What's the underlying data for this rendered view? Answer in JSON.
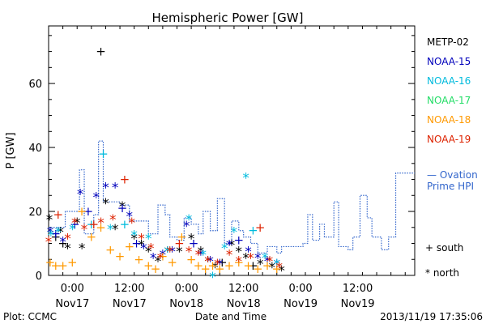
{
  "chart_data": {
    "type": "scatter",
    "title": "Hemispheric Power [GW]",
    "ylabel": "P [GW]",
    "xlabel": "Date and Time",
    "xlim": [
      "2013-11-16T19:00",
      "2013-11-20T00:00"
    ],
    "ylim": [
      0,
      78
    ],
    "yticks": [
      0,
      20,
      40,
      60
    ],
    "xticks": [
      {
        "t": "2013-11-17T00:00",
        "l1": "0:00",
        "l2": "Nov17"
      },
      {
        "t": "2013-11-17T12:00",
        "l1": "12:00",
        "l2": "Nov17"
      },
      {
        "t": "2013-11-18T00:00",
        "l1": "0:00",
        "l2": "Nov18"
      },
      {
        "t": "2013-11-18T12:00",
        "l1": "12:00",
        "l2": "Nov18"
      },
      {
        "t": "2013-11-19T00:00",
        "l1": "0:00",
        "l2": "Nov19"
      },
      {
        "t": "2013-11-19T12:00",
        "l1": "12:00",
        "l2": "Nov19"
      }
    ],
    "grid": false,
    "legend_position": "right",
    "markers": {
      "south": "+",
      "north": "*"
    },
    "marker_legend": [
      {
        "symbol": "+",
        "label": "south"
      },
      {
        "symbol": "*",
        "label": "north"
      }
    ],
    "series": [
      {
        "name": "METP-02",
        "color": "#000000",
        "points": [
          [
            "2013-11-16T19:10",
            18,
            "n"
          ],
          [
            "2013-11-16T20:30",
            12,
            "s"
          ],
          [
            "2013-11-16T21:30",
            14,
            "n"
          ],
          [
            "2013-11-16T23:00",
            9,
            "n"
          ],
          [
            "2013-11-16T22:00",
            10,
            "s"
          ],
          [
            "2013-11-17T01:00",
            17,
            "n"
          ],
          [
            "2013-11-17T02:00",
            9,
            "n"
          ],
          [
            "2013-11-17T06:00",
            70,
            "s"
          ],
          [
            "2013-11-17T07:00",
            23,
            "n"
          ],
          [
            "2013-11-17T09:00",
            15,
            "n"
          ],
          [
            "2013-11-17T10:30",
            22,
            "n"
          ],
          [
            "2013-11-17T13:00",
            12,
            "n"
          ],
          [
            "2013-11-17T14:30",
            10,
            "n"
          ],
          [
            "2013-11-17T16:00",
            8,
            "n"
          ],
          [
            "2013-11-17T18:00",
            5,
            "n"
          ],
          [
            "2013-11-17T20:00",
            8,
            "n"
          ],
          [
            "2013-11-17T22:30",
            8,
            "n"
          ],
          [
            "2013-11-18T01:00",
            12,
            "n"
          ],
          [
            "2013-11-18T03:00",
            8,
            "n"
          ],
          [
            "2013-11-18T04:30",
            5,
            "n"
          ],
          [
            "2013-11-18T06:00",
            3,
            "n"
          ],
          [
            "2013-11-18T07:30",
            4,
            "s"
          ],
          [
            "2013-11-18T09:30",
            10,
            "n"
          ],
          [
            "2013-11-18T11:00",
            8,
            "n"
          ],
          [
            "2013-11-18T12:30",
            6,
            "n"
          ],
          [
            "2013-11-18T14:00",
            3,
            "s"
          ],
          [
            "2013-11-18T15:30",
            4,
            "n"
          ],
          [
            "2013-11-18T18:00",
            3,
            "n"
          ],
          [
            "2013-11-18T20:00",
            2,
            "n"
          ]
        ]
      },
      {
        "name": "NOAA-15",
        "color": "#0000bb",
        "points": [
          [
            "2013-11-16T19:20",
            14,
            "n"
          ],
          [
            "2013-11-16T20:30",
            13,
            "s"
          ],
          [
            "2013-11-16T22:00",
            11,
            "n"
          ],
          [
            "2013-11-17T00:30",
            16,
            "s"
          ],
          [
            "2013-11-17T01:40",
            26,
            "n"
          ],
          [
            "2013-11-17T03:20",
            20,
            "s"
          ],
          [
            "2013-11-17T05:00",
            25,
            "n"
          ],
          [
            "2013-11-17T07:00",
            28,
            "n"
          ],
          [
            "2013-11-17T09:00",
            28,
            "n"
          ],
          [
            "2013-11-17T10:30",
            21,
            "s"
          ],
          [
            "2013-11-17T12:00",
            19,
            "n"
          ],
          [
            "2013-11-17T13:30",
            10,
            "s"
          ],
          [
            "2013-11-17T15:00",
            9,
            "n"
          ],
          [
            "2013-11-17T17:00",
            6,
            "n"
          ],
          [
            "2013-11-17T19:00",
            7,
            "n"
          ],
          [
            "2013-11-17T21:00",
            8,
            "n"
          ],
          [
            "2013-11-18T00:00",
            16,
            "n"
          ],
          [
            "2013-11-18T01:30",
            10,
            "s"
          ],
          [
            "2013-11-18T03:00",
            7,
            "n"
          ],
          [
            "2013-11-18T05:00",
            5,
            "n"
          ],
          [
            "2013-11-18T07:00",
            4,
            "n"
          ],
          [
            "2013-11-18T09:00",
            10,
            "n"
          ],
          [
            "2013-11-18T11:00",
            11,
            "s"
          ],
          [
            "2013-11-18T13:00",
            8,
            "n"
          ],
          [
            "2013-11-18T15:00",
            6,
            "n"
          ],
          [
            "2013-11-18T17:00",
            5,
            "n"
          ],
          [
            "2013-11-18T19:00",
            4,
            "n"
          ]
        ]
      },
      {
        "name": "NOAA-16",
        "color": "#00bbdd",
        "points": [
          [
            "2013-11-16T19:30",
            13,
            "n"
          ],
          [
            "2013-11-16T21:00",
            14,
            "n"
          ],
          [
            "2013-11-17T00:00",
            15,
            "n"
          ],
          [
            "2013-11-17T04:00",
            16,
            "s"
          ],
          [
            "2013-11-17T06:30",
            38,
            "s"
          ],
          [
            "2013-11-17T08:00",
            15,
            "n"
          ],
          [
            "2013-11-17T11:00",
            16,
            "s"
          ],
          [
            "2013-11-17T13:00",
            13,
            "n"
          ],
          [
            "2013-11-17T16:00",
            12,
            "n"
          ],
          [
            "2013-11-17T20:00",
            8,
            "n"
          ],
          [
            "2013-11-18T00:30",
            18,
            "n"
          ],
          [
            "2013-11-18T03:30",
            7,
            "n"
          ],
          [
            "2013-11-18T05:30",
            0,
            "n"
          ],
          [
            "2013-11-18T08:00",
            9,
            "n"
          ],
          [
            "2013-11-18T10:00",
            14,
            "n"
          ],
          [
            "2013-11-18T12:30",
            31,
            "n"
          ],
          [
            "2013-11-18T14:00",
            14,
            "s"
          ],
          [
            "2013-11-18T16:30",
            6,
            "n"
          ],
          [
            "2013-11-18T19:00",
            4,
            "n"
          ]
        ]
      },
      {
        "name": "NOAA-17",
        "color": "#22dd66",
        "points": []
      },
      {
        "name": "NOAA-18",
        "color": "#ff9900",
        "points": [
          [
            "2013-11-16T19:20",
            4,
            "s"
          ],
          [
            "2013-11-16T20:30",
            3,
            "s"
          ],
          [
            "2013-11-16T22:00",
            3,
            "s"
          ],
          [
            "2013-11-17T00:00",
            4,
            "s"
          ],
          [
            "2013-11-17T02:00",
            20,
            "s"
          ],
          [
            "2013-11-17T04:00",
            12,
            "s"
          ],
          [
            "2013-11-17T06:00",
            15,
            "s"
          ],
          [
            "2013-11-17T08:00",
            8,
            "s"
          ],
          [
            "2013-11-17T10:00",
            6,
            "s"
          ],
          [
            "2013-11-17T12:00",
            9,
            "s"
          ],
          [
            "2013-11-17T14:00",
            5,
            "s"
          ],
          [
            "2013-11-17T16:00",
            3,
            "s"
          ],
          [
            "2013-11-17T17:30",
            2,
            "s"
          ],
          [
            "2013-11-17T19:00",
            6,
            "s"
          ],
          [
            "2013-11-17T21:00",
            4,
            "s"
          ],
          [
            "2013-11-17T23:00",
            12,
            "s"
          ],
          [
            "2013-11-18T01:00",
            5,
            "s"
          ],
          [
            "2013-11-18T02:30",
            3,
            "s"
          ],
          [
            "2013-11-18T04:00",
            2,
            "s"
          ],
          [
            "2013-11-18T05:30",
            3,
            "s"
          ],
          [
            "2013-11-18T07:00",
            2,
            "s"
          ],
          [
            "2013-11-18T09:00",
            3,
            "s"
          ],
          [
            "2013-11-18T11:00",
            4,
            "s"
          ],
          [
            "2013-11-18T13:00",
            3,
            "s"
          ],
          [
            "2013-11-18T15:00",
            2,
            "s"
          ],
          [
            "2013-11-18T17:00",
            3,
            "s"
          ],
          [
            "2013-11-18T19:00",
            2,
            "s"
          ]
        ]
      },
      {
        "name": "NOAA-19",
        "color": "#dd2200",
        "points": [
          [
            "2013-11-16T19:00",
            11,
            "n"
          ],
          [
            "2013-11-16T21:00",
            19,
            "s"
          ],
          [
            "2013-11-16T23:00",
            12,
            "n"
          ],
          [
            "2013-11-17T00:30",
            17,
            "n"
          ],
          [
            "2013-11-17T02:30",
            15,
            "n"
          ],
          [
            "2013-11-17T04:30",
            16,
            "s"
          ],
          [
            "2013-11-17T06:00",
            17,
            "n"
          ],
          [
            "2013-11-17T08:30",
            18,
            "n"
          ],
          [
            "2013-11-17T11:00",
            30,
            "s"
          ],
          [
            "2013-11-17T12:30",
            17,
            "n"
          ],
          [
            "2013-11-17T14:30",
            12,
            "n"
          ],
          [
            "2013-11-17T16:30",
            9,
            "n"
          ],
          [
            "2013-11-17T18:30",
            6,
            "n"
          ],
          [
            "2013-11-17T20:30",
            8,
            "n"
          ],
          [
            "2013-11-17T22:30",
            10,
            "s"
          ],
          [
            "2013-11-18T00:30",
            8,
            "n"
          ],
          [
            "2013-11-18T02:30",
            7,
            "n"
          ],
          [
            "2013-11-18T04:30",
            5,
            "n"
          ],
          [
            "2013-11-18T06:30",
            4,
            "n"
          ],
          [
            "2013-11-18T09:00",
            7,
            "n"
          ],
          [
            "2013-11-18T11:00",
            5,
            "n"
          ],
          [
            "2013-11-18T13:30",
            6,
            "n"
          ],
          [
            "2013-11-18T15:30",
            15,
            "s"
          ],
          [
            "2013-11-18T17:30",
            5,
            "n"
          ],
          [
            "2013-11-18T19:30",
            3,
            "n"
          ]
        ]
      }
    ],
    "ovation": {
      "name": "Ovation Prime HPI",
      "label_line1": "— Ovation",
      "label_line2": "Prime HPI",
      "color": "#3366cc",
      "points": [
        [
          "2013-11-16T19:00",
          15
        ],
        [
          "2013-11-16T22:30",
          20
        ],
        [
          "2013-11-17T00:00",
          20
        ],
        [
          "2013-11-17T01:30",
          33
        ],
        [
          "2013-11-17T02:30",
          13
        ],
        [
          "2013-11-17T04:30",
          19
        ],
        [
          "2013-11-17T05:30",
          42
        ],
        [
          "2013-11-17T06:30",
          23
        ],
        [
          "2013-11-17T08:30",
          23
        ],
        [
          "2013-11-17T10:00",
          22
        ],
        [
          "2013-11-17T12:00",
          17
        ],
        [
          "2013-11-17T14:30",
          17
        ],
        [
          "2013-11-17T16:00",
          13
        ],
        [
          "2013-11-17T18:00",
          22
        ],
        [
          "2013-11-17T19:30",
          19
        ],
        [
          "2013-11-17T20:30",
          12
        ],
        [
          "2013-11-17T22:00",
          11
        ],
        [
          "2013-11-17T23:30",
          18
        ],
        [
          "2013-11-18T01:00",
          16
        ],
        [
          "2013-11-18T02:30",
          13
        ],
        [
          "2013-11-18T03:30",
          20
        ],
        [
          "2013-11-18T05:00",
          14
        ],
        [
          "2013-11-18T06:30",
          24
        ],
        [
          "2013-11-18T08:00",
          10
        ],
        [
          "2013-11-18T09:30",
          17
        ],
        [
          "2013-11-18T11:00",
          14
        ],
        [
          "2013-11-18T12:00",
          12
        ],
        [
          "2013-11-18T13:30",
          10
        ],
        [
          "2013-11-18T15:00",
          7
        ],
        [
          "2013-11-18T17:00",
          9
        ],
        [
          "2013-11-18T19:00",
          7
        ],
        [
          "2013-11-18T20:00",
          9
        ],
        [
          "2013-11-18T22:00",
          9
        ],
        [
          "2013-11-19T00:30",
          10
        ],
        [
          "2013-11-19T01:30",
          19
        ],
        [
          "2013-11-19T02:30",
          11
        ],
        [
          "2013-11-19T04:00",
          16
        ],
        [
          "2013-11-19T05:00",
          12
        ],
        [
          "2013-11-19T07:00",
          23
        ],
        [
          "2013-11-19T08:00",
          9
        ],
        [
          "2013-11-19T10:00",
          8
        ],
        [
          "2013-11-19T11:00",
          12
        ],
        [
          "2013-11-19T12:30",
          25
        ],
        [
          "2013-11-19T14:00",
          18
        ],
        [
          "2013-11-19T15:00",
          12
        ],
        [
          "2013-11-19T17:00",
          8
        ],
        [
          "2013-11-19T18:30",
          12
        ],
        [
          "2013-11-19T20:00",
          32
        ],
        [
          "2013-11-20T00:00",
          32
        ]
      ]
    }
  },
  "footer": {
    "plot_credit": "Plot: CCMC",
    "timestamp": "2013/11/19 17:35:06"
  }
}
